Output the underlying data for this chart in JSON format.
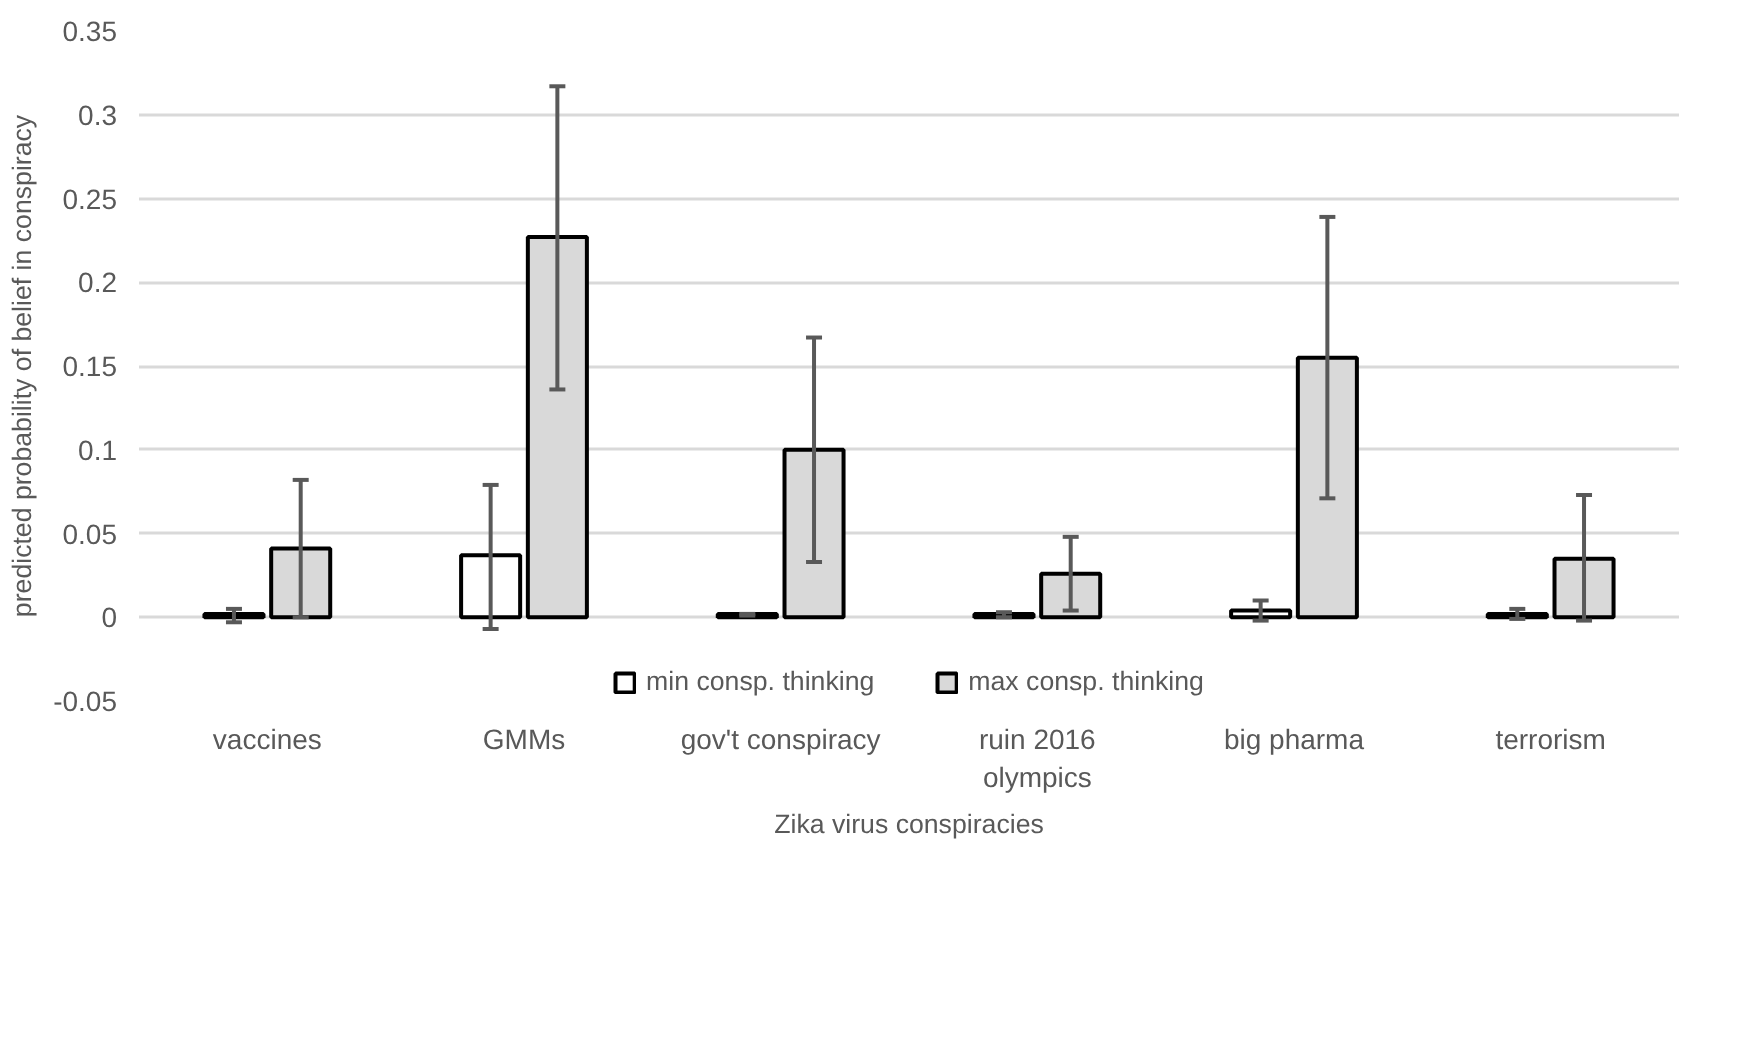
{
  "chart_data": {
    "type": "bar",
    "xlabel": "Zika virus conspiracies",
    "ylabel": "predicted probability of belief in conspiracy",
    "categories": [
      "vaccines",
      "GMMs",
      "gov't conspiracy",
      "ruin 2016\nolympics",
      "big pharma",
      "terrorism"
    ],
    "series": [
      {
        "name": "min consp. thinking",
        "color": "#ffffff",
        "values": [
          0.002,
          0.037,
          0.002,
          0.002,
          0.004,
          0.002
        ],
        "errors": [
          [
            -0.003,
            0.005
          ],
          [
            -0.007,
            0.079
          ],
          [
            0.001,
            0.002
          ],
          [
            0.0,
            0.003
          ],
          [
            -0.002,
            0.01
          ],
          [
            -0.001,
            0.005
          ]
        ]
      },
      {
        "name": "max consp. thinking",
        "color": "#d9d9d9",
        "values": [
          0.041,
          0.227,
          0.1,
          0.026,
          0.155,
          0.035
        ],
        "errors": [
          [
            0.0,
            0.082
          ],
          [
            0.136,
            0.317
          ],
          [
            0.033,
            0.167
          ],
          [
            0.004,
            0.048
          ],
          [
            0.071,
            0.239
          ],
          [
            -0.002,
            0.073
          ]
        ]
      }
    ],
    "ylim": [
      -0.05,
      0.35
    ],
    "yticks": [
      -0.05,
      0,
      0.05,
      0.1,
      0.15,
      0.2,
      0.25,
      0.3,
      0.35
    ],
    "grid": "y",
    "legend": "bottom"
  }
}
